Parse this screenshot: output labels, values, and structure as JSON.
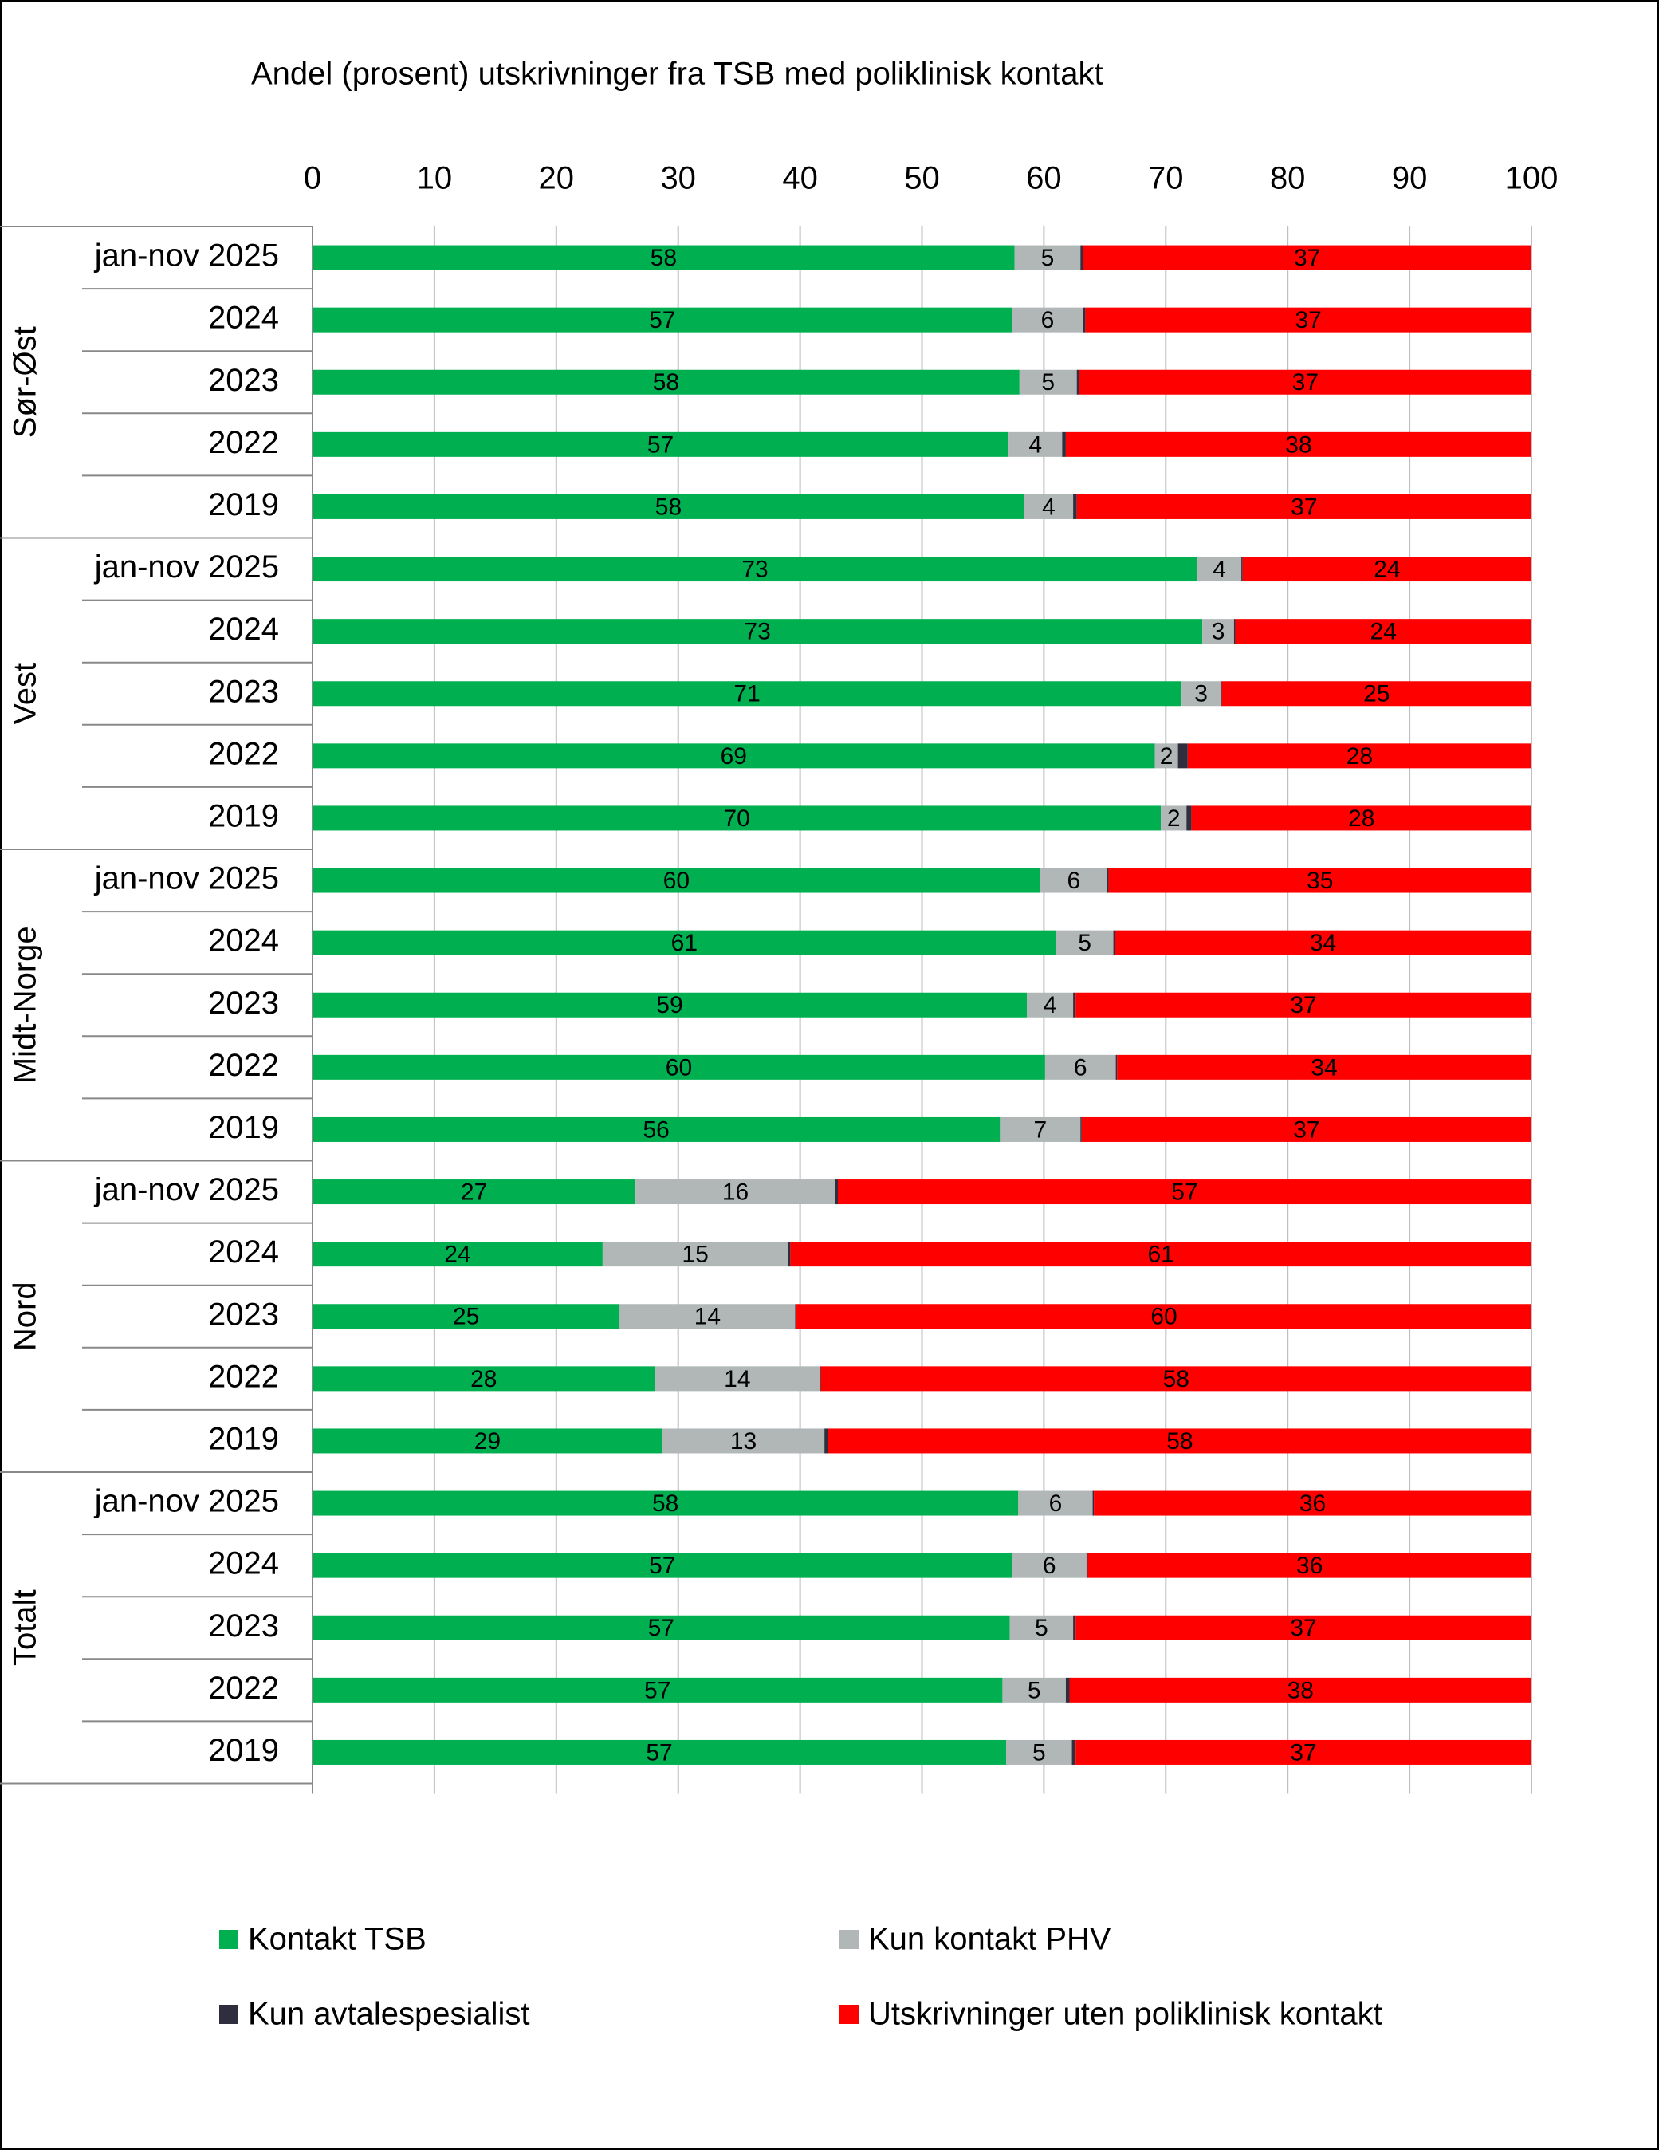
{
  "chart_data": {
    "type": "stacked-bar-horizontal",
    "title": "Andel (prosent)  utskrivninger fra TSB med poliklinisk kontakt",
    "groups": [
      {
        "label": "Sør-Øst",
        "categories": [
          "jan-nov 2025",
          "2024",
          "2023",
          "2022",
          "2019"
        ]
      },
      {
        "label": "Vest",
        "categories": [
          "jan-nov 2025",
          "2024",
          "2023",
          "2022",
          "2019"
        ]
      },
      {
        "label": "Midt-Norge",
        "categories": [
          "jan-nov 2025",
          "2024",
          "2023",
          "2022",
          "2019"
        ]
      },
      {
        "label": "Nord",
        "categories": [
          "jan-nov 2025",
          "2024",
          "2023",
          "2022",
          "2019"
        ]
      },
      {
        "label": "Totalt",
        "categories": [
          "jan-nov 2025",
          "2024",
          "2023",
          "2022",
          "2019"
        ]
      }
    ],
    "series": [
      {
        "name": "Kontakt TSB",
        "color": "#00b050",
        "label_color": "#ffffff",
        "values": [
          57.6,
          57.4,
          58.0,
          57.1,
          58.4,
          72.6,
          73.0,
          71.3,
          69.1,
          69.6,
          59.7,
          61.0,
          58.6,
          60.1,
          56.4,
          26.5,
          23.8,
          25.2,
          28.1,
          28.7,
          57.9,
          57.4,
          57.2,
          56.6,
          56.9
        ],
        "value_labels": [
          "58",
          "57",
          "58",
          "57",
          "58",
          "73",
          "73",
          "71",
          "69",
          "70",
          "60",
          "61",
          "59",
          "60",
          "56",
          "27",
          "24",
          "25",
          "28",
          "29",
          "58",
          "57",
          "57",
          "57",
          "57"
        ]
      },
      {
        "name": "Kun kontakt PHV",
        "color": "#b1b7b7",
        "label_color": "#000000",
        "values": [
          5.4,
          5.8,
          4.7,
          4.4,
          4.0,
          3.6,
          2.6,
          3.2,
          1.9,
          2.1,
          5.5,
          4.7,
          3.8,
          5.8,
          6.6,
          16.4,
          15.2,
          14.4,
          13.5,
          13.3,
          6.1,
          6.1,
          5.2,
          5.2,
          5.4
        ],
        "value_labels": [
          "5",
          "6",
          "5",
          "4",
          "4",
          "4",
          "3",
          "3",
          "2",
          "2",
          "6",
          "5",
          "4",
          "6",
          "7",
          "16",
          "15",
          "14",
          "14",
          "13",
          "6",
          "6",
          "5",
          "5",
          "5"
        ]
      },
      {
        "name": "Kun avtalespesialist",
        "color": "#2e2e3e",
        "values": [
          0.2,
          0.2,
          0.2,
          0.3,
          0.3,
          0.1,
          0.1,
          0.1,
          0.8,
          0.4,
          0.1,
          0.1,
          0.2,
          0.1,
          0.1,
          0.2,
          0.2,
          0.1,
          0.1,
          0.3,
          0.1,
          0.1,
          0.2,
          0.3,
          0.3
        ]
      },
      {
        "name": "Utskrivninger uten poliklinisk kontakt",
        "color": "#ff0000",
        "label_color": "#000000",
        "values": [
          36.8,
          36.6,
          37.1,
          38.2,
          37.3,
          23.7,
          24.3,
          25.4,
          28.2,
          27.9,
          34.7,
          34.2,
          37.4,
          34.0,
          36.9,
          56.9,
          60.8,
          60.3,
          58.3,
          57.7,
          35.9,
          36.4,
          37.4,
          37.9,
          37.4
        ],
        "value_labels": [
          "37",
          "37",
          "37",
          "38",
          "37",
          "24",
          "24",
          "25",
          "28",
          "28",
          "35",
          "34",
          "37",
          "34",
          "37",
          "57",
          "61",
          "60",
          "58",
          "58",
          "36",
          "36",
          "37",
          "38",
          "37"
        ]
      }
    ],
    "xlim": [
      0,
      100
    ],
    "xticks": [
      0,
      10,
      20,
      30,
      40,
      50,
      60,
      70,
      80,
      90,
      100
    ],
    "grid": true
  }
}
